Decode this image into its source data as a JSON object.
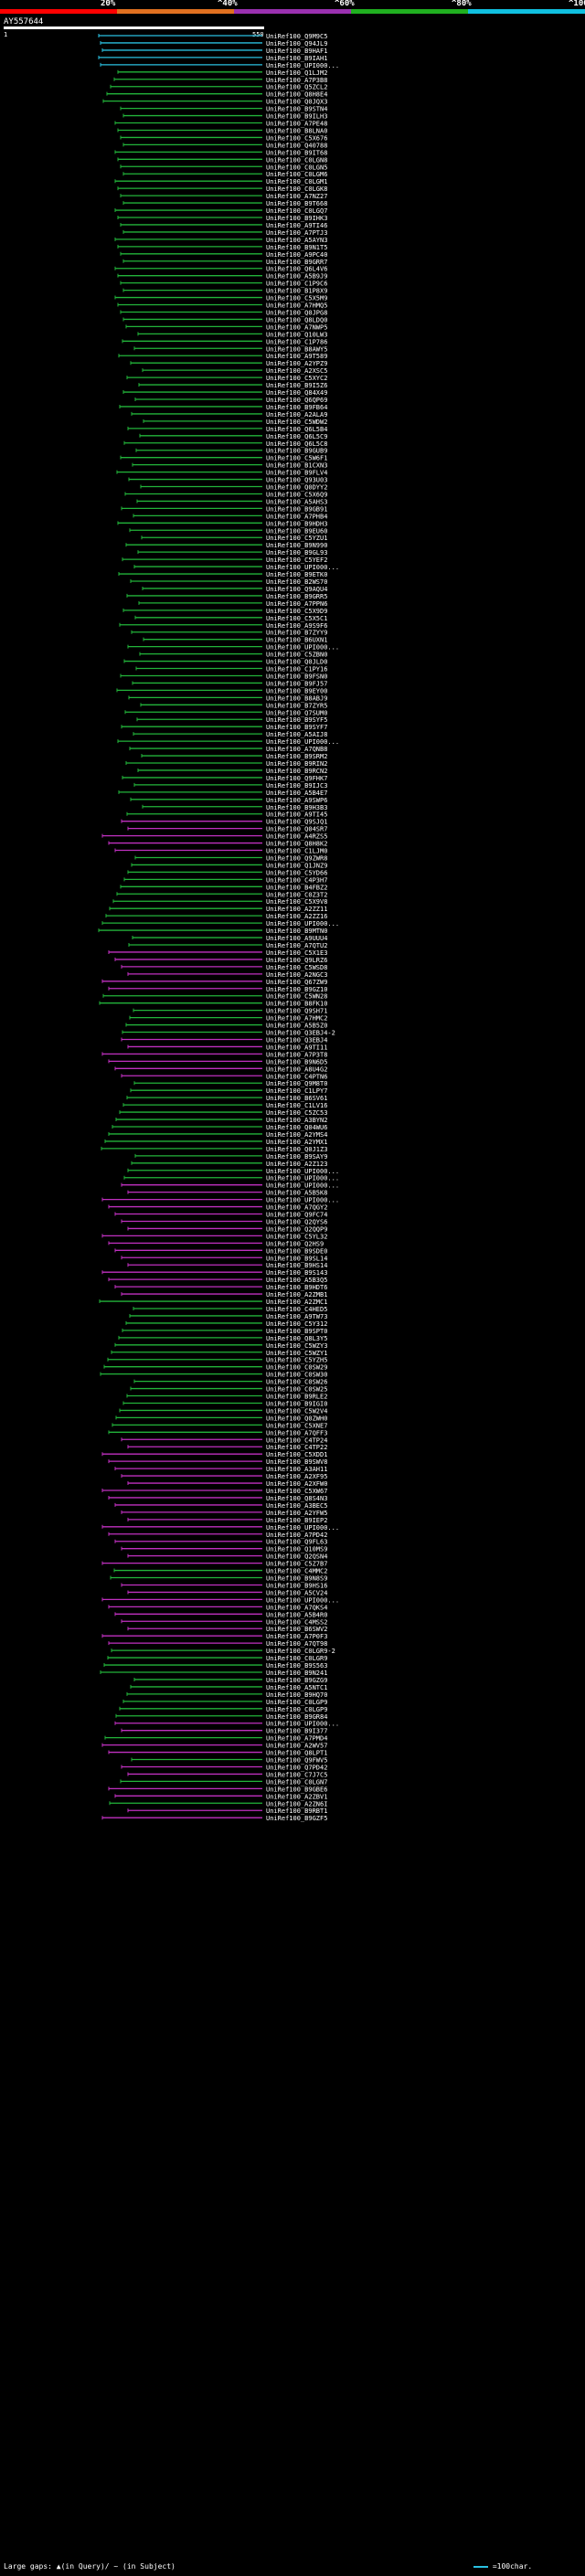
{
  "header": {
    "scale_labels": [
      "20%",
      "^40%",
      "^60%",
      "^80%",
      "^100%"
    ],
    "scale_colors": [
      "#ff0000",
      "#e07020",
      "#9a30b0",
      "#20b020",
      "#10c0e0"
    ],
    "query_id": "AY557644",
    "start_pos": "1",
    "end_pos": "550"
  },
  "colors": {
    "cyan": "#2ac0e0",
    "green": "#22b43a",
    "magenta": "#c030c0"
  },
  "hits": [
    "UniRef100_Q9M9C5",
    "UniRef100_Q94JL9",
    "UniRef100_B9HAF1",
    "UniRef100_B9IAH1",
    "UniRef100_UPI000...",
    "UniRef100_Q1LJM2",
    "UniRef100_A7P3B8",
    "UniRef100_Q5ZCL2",
    "UniRef100_Q8H8E4",
    "UniRef100_Q0JQX3",
    "UniRef100_B9STN4",
    "UniRef100_B9ILH3",
    "UniRef100_A7PE48",
    "UniRef100_B8LNA0",
    "UniRef100_C5X676",
    "UniRef100_Q40788",
    "UniRef100_B9IT68",
    "UniRef100_C0LGN8",
    "UniRef100_C0LGN5",
    "UniRef100_C0LGM6",
    "UniRef100_C0LGM1",
    "UniRef100_C0LGK8",
    "UniRef100_A7NZ27",
    "UniRef100_B9T668",
    "UniRef100_C0LGQ7",
    "UniRef100_B9IHK3",
    "UniRef100_A9TI46",
    "UniRef100_A7PTJ3",
    "UniRef100_A5AYN3",
    "UniRef100_B9N1T5",
    "UniRef100_A9PC40",
    "UniRef100_B9GRR7",
    "UniRef100_Q6L4V6",
    "UniRef100_A5B9J9",
    "UniRef100_C1P9C6",
    "UniRef100_B1P8X9",
    "UniRef100_C5X5M9",
    "UniRef100_A7HMQ5",
    "UniRef100_Q0JPG8",
    "UniRef100_Q8LDQ0",
    "UniRef100_A7NWP5",
    "UniRef100_Q10LW3",
    "UniRef100_C1P786",
    "UniRef100_B8AWY5",
    "UniRef100_A9T589",
    "UniRef100_A2YPZ9",
    "UniRef100_A2XSC5",
    "UniRef100_C5XYC2",
    "UniRef100_B9I5Z6",
    "UniRef100_Q84X49",
    "UniRef100_Q6QP69",
    "UniRef100_B9FB64",
    "UniRef100_A2ALA9",
    "UniRef100_C5WDW2",
    "UniRef100_Q6L5B4",
    "UniRef100_Q6L5C9",
    "UniRef100_Q6L5C8",
    "UniRef100_B9GUB9",
    "UniRef100_C5W6F1",
    "UniRef100_B1CXN3",
    "UniRef100_B9FLV4",
    "UniRef100_Q93U03",
    "UniRef100_Q0DYY2",
    "UniRef100_C5X6Q9",
    "UniRef100_A5AHS3",
    "UniRef100_B9GB91",
    "UniRef100_A7PHB4",
    "UniRef100_B9HDH3",
    "UniRef100_B9EU60",
    "UniRef100_C5YZU1",
    "UniRef100_B9N990",
    "UniRef100_B9GL93",
    "UniRef100_C5YEF2",
    "UniRef100_UPI000...",
    "UniRef100_B9ETK0",
    "UniRef100_B2WS70",
    "UniRef100_Q9AQU4",
    "UniRef100_B9GRR5",
    "UniRef100_A7PPN6",
    "UniRef100_C5X9D9",
    "UniRef100_C5X5C1",
    "UniRef100_A9S9F6",
    "UniRef100_B7ZYY9",
    "UniRef100_B6UXN1",
    "UniRef100_UPI000...",
    "UniRef100_C5ZBN0",
    "UniRef100_Q0JLD0",
    "UniRef100_C1PY16",
    "UniRef100_B9FSN0",
    "UniRef100_B9FJ57",
    "UniRef100_B9EY00",
    "UniRef100_B8ABJ9",
    "UniRef100_B7ZYR5",
    "UniRef100_Q7SUM0",
    "UniRef100_B9SYF5",
    "UniRef100_B9SYF7",
    "UniRef100_A5AIJ8",
    "UniRef100_UPI000...",
    "UniRef100_A7QNB8",
    "UniRef100_B9SRM2",
    "UniRef100_B9RIN2",
    "UniRef100_B9RCN2",
    "UniRef100_Q9FHK7",
    "UniRef100_B9IJC3",
    "UniRef100_A5B4E7",
    "UniRef100_A9SWP6",
    "UniRef100_B9H3B3",
    "UniRef100_A9TI45",
    "UniRef100_Q9SJQ1",
    "UniRef100_Q04SR7",
    "UniRef100_A4RZS5",
    "UniRef100_Q8H8K2",
    "UniRef100_C1LJM0",
    "UniRef100_Q9ZWR8",
    "UniRef100_Q1JNZ9",
    "UniRef100_C5YD66",
    "UniRef100_C4P3H7",
    "UniRef100_B4FBZ2",
    "UniRef100_C0Z3T2",
    "UniRef100_C5X9V8",
    "UniRef100_A2ZZ11",
    "UniRef100_A2ZZ16",
    "UniRef100_UPI000...",
    "UniRef100_B9MTN0",
    "UniRef100_A9UUU4",
    "UniRef100_A7QTU2",
    "UniRef100_C5X1E3",
    "UniRef100_Q9LRZ6",
    "UniRef100_C5WSD8",
    "UniRef100_A2NGC3",
    "UniRef100_Q67ZW9",
    "UniRef100_B9GZ10",
    "UniRef100_C5WN28",
    "UniRef100_B8FK10",
    "UniRef100_Q9SH71",
    "UniRef100_A7HMC2",
    "UniRef100_A5B5Z0",
    "UniRef100_Q3EBJ4-2",
    "UniRef100_Q3EBJ4",
    "UniRef100_A9TI11",
    "UniRef100_A7P3T8",
    "UniRef100_B9N6D5",
    "UniRef100_A8U4G2",
    "UniRef100_C4PTN6",
    "UniRef100_Q9M8T0",
    "UniRef100_C1LPY7",
    "UniRef100_B6SV61",
    "UniRef100_C1LV16",
    "UniRef100_C5ZC53",
    "UniRef100_A3BYN2",
    "UniRef100_Q04WU6",
    "UniRef100_A2YMS4",
    "UniRef100_A2YMX1",
    "UniRef100_Q0J1Z3",
    "UniRef100_B9SAY9",
    "UniRef100_A2Z123",
    "UniRef100_UPI000...",
    "UniRef100_UPI000...",
    "UniRef100_UPI000...",
    "UniRef100_A5B5K8",
    "UniRef100_UPI000...",
    "UniRef100_A7QGY2",
    "UniRef100_Q9FC74",
    "UniRef100_Q2QYS6",
    "UniRef100_Q2QQP9",
    "UniRef100_C5YL32",
    "UniRef100_Q2HS9",
    "UniRef100_B9SDE0",
    "UniRef100_B9SL14",
    "UniRef100_B9HS14",
    "UniRef100_B9S143",
    "UniRef100_A5B3Q5",
    "UniRef100_B9HDT6",
    "UniRef100_A2ZMB1",
    "UniRef100_A2ZMC1",
    "UniRef100_C4HED5",
    "UniRef100_A9TW73",
    "UniRef100_C5Y312",
    "UniRef100_B9SPT0",
    "UniRef100_Q8L3Y5",
    "UniRef100_C5WZY3",
    "UniRef100_C5WZY1",
    "UniRef100_C5YZH5",
    "UniRef100_C0SW29",
    "UniRef100_C0SW30",
    "UniRef100_C0SW26",
    "UniRef100_C0SW25",
    "UniRef100_B9RLE2",
    "UniRef100_B9IGI0",
    "UniRef100_C5W2V4",
    "UniRef100_Q0ZWH0",
    "UniRef100_C5XNE7",
    "UniRef100_A7QFF3",
    "UniRef100_C4TP24",
    "UniRef100_C4TP22",
    "UniRef100_C5XDD1",
    "UniRef100_B9SWV8",
    "UniRef100_A3AH11",
    "UniRef100_A2XF95",
    "UniRef100_A2XFW0",
    "UniRef100_C5XW67",
    "UniRef100_Q8S4N3",
    "UniRef100_A3BEC5",
    "UniRef100_A2YFW5",
    "UniRef100_B9IEP2",
    "UniRef100_UPI000...",
    "UniRef100_A7PD42",
    "UniRef100_Q9FL63",
    "UniRef100_Q10MS9",
    "UniRef100_Q2QSN4",
    "UniRef100_C5Z7B7",
    "UniRef100_C4MMC2",
    "UniRef100_B9N8S9",
    "UniRef100_B9HS16",
    "UniRef100_A5CV24",
    "UniRef100_UPI000...",
    "UniRef100_A7QKS4",
    "UniRef100_A5B4R0",
    "UniRef100_C4MSS2",
    "UniRef100_B6SWV2",
    "UniRef100_A7P0F3",
    "UniRef100_A7QT98",
    "UniRef100_C0LGR9-2",
    "UniRef100_C0LGR9",
    "UniRef100_B9S563",
    "UniRef100_B9N241",
    "UniRef100_B9GZG9",
    "UniRef100_A5NTC1",
    "UniRef100_B9HQ70",
    "UniRef100_C0LGP9",
    "UniRef100_C0LGP9",
    "UniRef100_B9GR84",
    "UniRef100_UPI000...",
    "UniRef100_B9I377",
    "UniRef100_A7PMD4",
    "UniRef100_A2WV57",
    "UniRef100_Q8LPT1",
    "UniRef100_Q9FWV5",
    "UniRef100_Q7PD42",
    "UniRef100_C7J7C5",
    "UniRef100_C0LGN7",
    "UniRef100_B9GBE6",
    "UniRef100_A2ZBV1",
    "UniRef100_A2ZN6I",
    "UniRef100_B9RBT1",
    "UniRef100_B9GZF5"
  ],
  "footer": {
    "gaps_text": "Large gaps: ▲(in Query)/ ~ (in Subject)",
    "scale_text": "=100char."
  }
}
